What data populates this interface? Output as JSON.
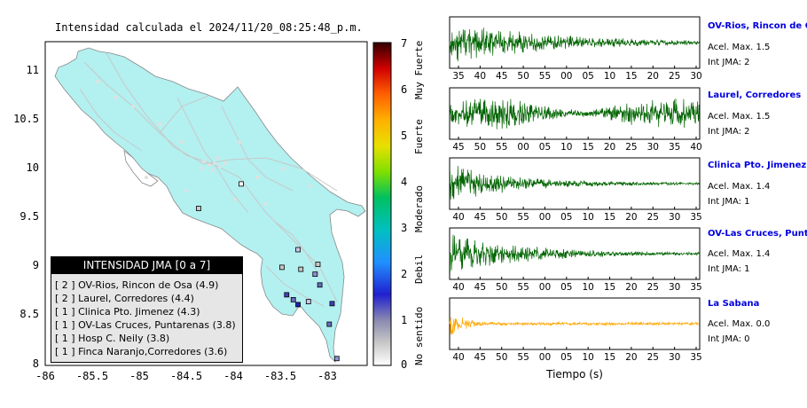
{
  "chart_data": [
    {
      "type": "map",
      "title": "Intensidad calculada el 2024/11/20_08:25:48_p.m.",
      "x_ticks": [
        "-86",
        "-85.5",
        "-85",
        "-84.5",
        "-84",
        "-83.5",
        "-83"
      ],
      "y_ticks": [
        "11",
        "10.5",
        "10",
        "9.5",
        "9",
        "8.5",
        "8"
      ],
      "xlim": [
        -86,
        -82.6
      ],
      "ylim": [
        8,
        11.3
      ],
      "colorbar": {
        "ticks": [
          "7",
          "6",
          "5",
          "4",
          "3",
          "2",
          "1",
          "0"
        ],
        "categories": [
          "Muy Fuerte",
          "Fuerte",
          "Moderado",
          "Debil",
          "No sentido"
        ],
        "range": [
          0,
          7
        ]
      },
      "legend": {
        "title": "INTENSIDAD JMA [0 a 7]",
        "entries": [
          "[ 2 ]  OV-Rios, Rincon de Osa (4.9)",
          "[ 2 ]  Laurel, Corredores (4.4)",
          "[ 1 ]  Clinica Pto. Jimenez (4.3)",
          "[ 1 ]  OV-Las Cruces, Puntarenas (3.8)",
          "[ 1 ]  Hosp C. Neily (3.8)",
          "[ 1 ]  Finca Naranjo,Corredores (3.6)"
        ]
      },
      "stations": [
        {
          "lon": -83.93,
          "lat": 9.85,
          "jma": 0
        },
        {
          "lon": -83.3,
          "lat": 8.98,
          "jma": 1
        },
        {
          "lon": -83.15,
          "lat": 8.93,
          "jma": 3
        },
        {
          "lon": -83.1,
          "lat": 8.82,
          "jma": 4
        },
        {
          "lon": -83.33,
          "lat": 9.18,
          "jma": 2
        },
        {
          "lon": -83.12,
          "lat": 9.03,
          "jma": 1
        },
        {
          "lon": -83.5,
          "lat": 9.0,
          "jma": 1
        },
        {
          "lon": -83.45,
          "lat": 8.72,
          "jma": 5
        },
        {
          "lon": -83.38,
          "lat": 8.67,
          "jma": 4
        },
        {
          "lon": -83.33,
          "lat": 8.62,
          "jma": 6
        },
        {
          "lon": -83.22,
          "lat": 8.65,
          "jma": 2
        },
        {
          "lon": -82.97,
          "lat": 8.63,
          "jma": 5
        },
        {
          "lon": -83.0,
          "lat": 8.42,
          "jma": 4
        },
        {
          "lon": -82.92,
          "lat": 8.07,
          "jma": 3
        },
        {
          "lon": -84.38,
          "lat": 9.6,
          "jma": 1
        }
      ]
    },
    {
      "type": "line",
      "panels": [
        {
          "station": "OV-Rios, Rincon de Os",
          "accel": "Acel. Max. 1.5",
          "jma": "Int JMA: 2",
          "color": "#006400",
          "ticks": [
            "35",
            "40",
            "45",
            "50",
            "55",
            "00",
            "05",
            "10",
            "15",
            "20",
            "25",
            "30"
          ],
          "amp": 1.0,
          "decay": 0.08,
          "noise": 0.08
        },
        {
          "station": "Laurel, Corredores",
          "accel": "Acel. Max. 1.5",
          "jma": "Int JMA: 2",
          "color": "#006400",
          "ticks": [
            "45",
            "50",
            "55",
            "00",
            "05",
            "10",
            "15",
            "20",
            "25",
            "30",
            "35",
            "40"
          ],
          "amp": 0.85,
          "decay": 0.0,
          "noise": 0.5
        },
        {
          "station": "Clinica Pto. Jimenez",
          "accel": "Acel. Max. 1.4",
          "jma": "Int JMA: 1",
          "color": "#006400",
          "ticks": [
            "40",
            "45",
            "50",
            "55",
            "00",
            "05",
            "10",
            "15",
            "20",
            "25",
            "30",
            "35"
          ],
          "amp": 0.9,
          "decay": 0.05,
          "noise": 0.15
        },
        {
          "station": "OV-Las Cruces, Puntar",
          "accel": "Acel. Max. 1.4",
          "jma": "Int JMA: 1",
          "color": "#006400",
          "ticks": [
            "40",
            "45",
            "50",
            "55",
            "00",
            "05",
            "10",
            "15",
            "20",
            "25",
            "30",
            "35"
          ],
          "amp": 1.0,
          "decay": 0.06,
          "noise": 0.1
        },
        {
          "station": "La Sabana",
          "accel": "Acel. Max. 0.0",
          "jma": "Int JMA: 0",
          "color": "#ffa500",
          "ticks": [
            "40",
            "45",
            "50",
            "55",
            "00",
            "05",
            "10",
            "15",
            "20",
            "25",
            "30",
            "35"
          ],
          "amp": 0.7,
          "decay": 0.01,
          "noise": 0.3
        }
      ],
      "xlabel": "Tiempo (s)"
    }
  ]
}
